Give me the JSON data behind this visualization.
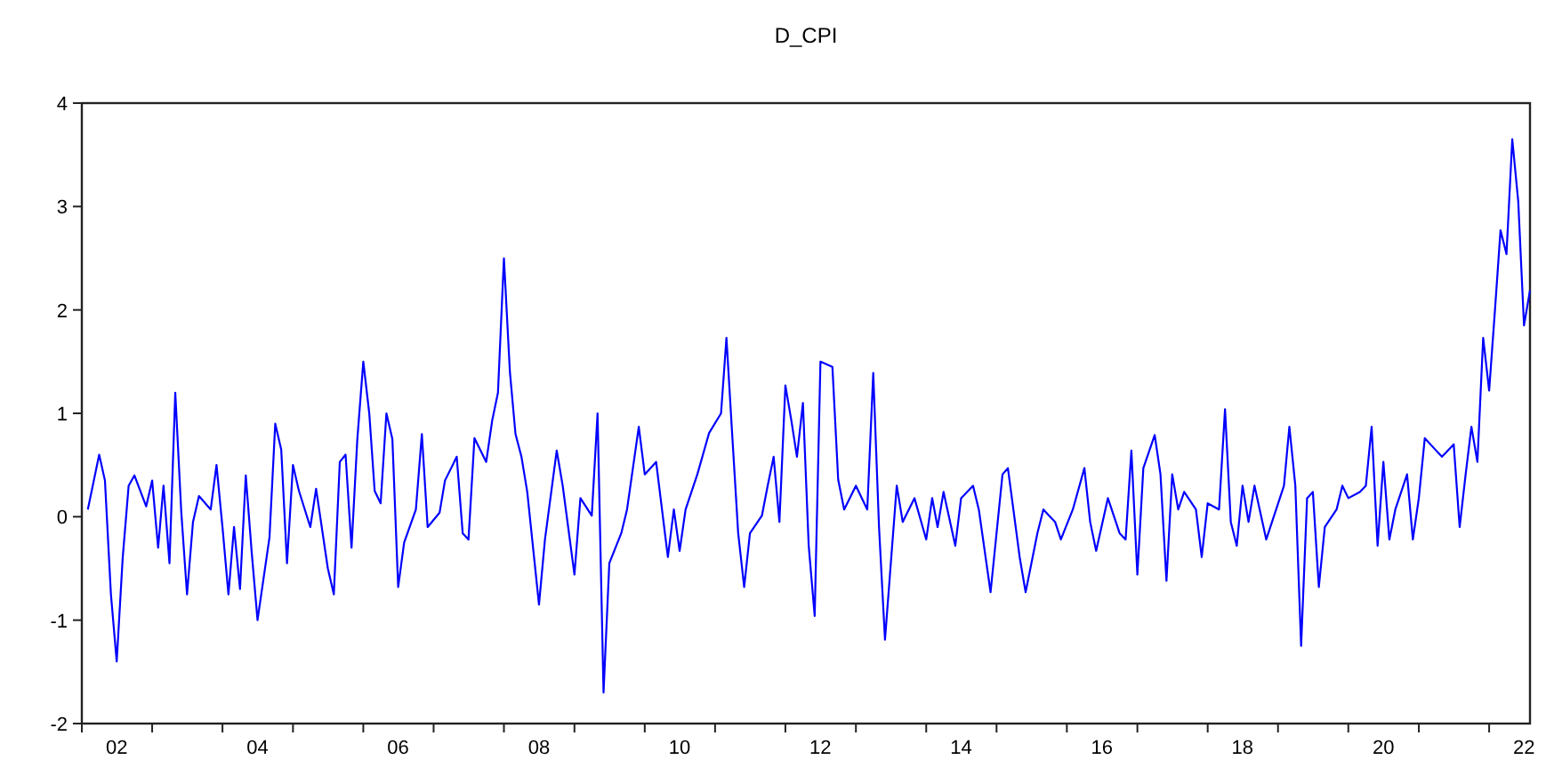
{
  "chart_data": {
    "type": "line",
    "title": "D_CPI",
    "xlim": [
      "2002-01",
      "2022-08"
    ],
    "ylim": [
      -2,
      4
    ],
    "yticks": [
      -2,
      -1,
      0,
      1,
      2,
      3,
      4
    ],
    "xticks": [
      {
        "value": "2002-01",
        "label": null
      },
      {
        "value": "2002-07",
        "label": "02"
      },
      {
        "value": "2003-01",
        "label": null
      },
      {
        "value": "2004-01",
        "label": null
      },
      {
        "value": "2004-07",
        "label": "04"
      },
      {
        "value": "2005-01",
        "label": null
      },
      {
        "value": "2006-01",
        "label": null
      },
      {
        "value": "2006-07",
        "label": "06"
      },
      {
        "value": "2007-01",
        "label": null
      },
      {
        "value": "2008-01",
        "label": null
      },
      {
        "value": "2008-07",
        "label": "08"
      },
      {
        "value": "2009-01",
        "label": null
      },
      {
        "value": "2010-01",
        "label": null
      },
      {
        "value": "2010-07",
        "label": "10"
      },
      {
        "value": "2011-01",
        "label": null
      },
      {
        "value": "2012-01",
        "label": null
      },
      {
        "value": "2012-07",
        "label": "12"
      },
      {
        "value": "2013-01",
        "label": null
      },
      {
        "value": "2014-01",
        "label": null
      },
      {
        "value": "2014-07",
        "label": "14"
      },
      {
        "value": "2015-01",
        "label": null
      },
      {
        "value": "2016-01",
        "label": null
      },
      {
        "value": "2016-07",
        "label": "16"
      },
      {
        "value": "2017-01",
        "label": null
      },
      {
        "value": "2018-01",
        "label": null
      },
      {
        "value": "2018-07",
        "label": "18"
      },
      {
        "value": "2019-01",
        "label": null
      },
      {
        "value": "2020-01",
        "label": null
      },
      {
        "value": "2020-07",
        "label": "20"
      },
      {
        "value": "2021-01",
        "label": null
      },
      {
        "value": "2022-01",
        "label": null
      },
      {
        "value": "2022-07",
        "label": "22"
      }
    ],
    "grid": false,
    "marker": "none",
    "line_style": "solid",
    "x": [
      "2002-02",
      "2002-04",
      "2002-05",
      "2002-06",
      "2002-07",
      "2002-08",
      "2002-09",
      "2002-10",
      "2002-12",
      "2003-01",
      "2003-02",
      "2003-03",
      "2003-04",
      "2003-05",
      "2003-06",
      "2003-07",
      "2003-08",
      "2003-09",
      "2003-11",
      "2003-12",
      "2004-01",
      "2004-02",
      "2004-03",
      "2004-04",
      "2004-05",
      "2004-06",
      "2004-07",
      "2004-09",
      "2004-10",
      "2004-11",
      "2004-12",
      "2005-01",
      "2005-02",
      "2005-04",
      "2005-05",
      "2005-07",
      "2005-08",
      "2005-09",
      "2005-10",
      "2005-11",
      "2005-12",
      "2006-01",
      "2006-02",
      "2006-03",
      "2006-04",
      "2006-05",
      "2006-06",
      "2006-07",
      "2006-08",
      "2006-10",
      "2006-11",
      "2006-12",
      "2007-02",
      "2007-03",
      "2007-05",
      "2007-06",
      "2007-07",
      "2007-08",
      "2007-10",
      "2007-11",
      "2007-12",
      "2008-01",
      "2008-02",
      "2008-03",
      "2008-04",
      "2008-05",
      "2008-07",
      "2008-08",
      "2008-10",
      "2008-11",
      "2009-01",
      "2009-02",
      "2009-04",
      "2009-05",
      "2009-06",
      "2009-07",
      "2009-09",
      "2009-10",
      "2009-12",
      "2010-01",
      "2010-03",
      "2010-05",
      "2010-06",
      "2010-07",
      "2010-08",
      "2010-10",
      "2010-12",
      "2011-02",
      "2011-03",
      "2011-04",
      "2011-05",
      "2011-06",
      "2011-07",
      "2011-09",
      "2011-10",
      "2011-11",
      "2011-12",
      "2012-01",
      "2012-02",
      "2012-03",
      "2012-04",
      "2012-05",
      "2012-06",
      "2012-07",
      "2012-09",
      "2012-10",
      "2012-11",
      "2013-01",
      "2013-03",
      "2013-04",
      "2013-05",
      "2013-06",
      "2013-08",
      "2013-09",
      "2013-11",
      "2014-01",
      "2014-02",
      "2014-03",
      "2014-04",
      "2014-06",
      "2014-07",
      "2014-09",
      "2014-10",
      "2014-12",
      "2015-02",
      "2015-03",
      "2015-05",
      "2015-06",
      "2015-08",
      "2015-09",
      "2015-11",
      "2015-12",
      "2016-02",
      "2016-04",
      "2016-05",
      "2016-06",
      "2016-08",
      "2016-10",
      "2016-11",
      "2016-12",
      "2017-01",
      "2017-02",
      "2017-04",
      "2017-05",
      "2017-06",
      "2017-07",
      "2017-08",
      "2017-09",
      "2017-11",
      "2017-12",
      "2018-01",
      "2018-03",
      "2018-04",
      "2018-05",
      "2018-06",
      "2018-07",
      "2018-08",
      "2018-09",
      "2018-11",
      "2018-12",
      "2019-02",
      "2019-03",
      "2019-04",
      "2019-05",
      "2019-06",
      "2019-07",
      "2019-08",
      "2019-09",
      "2019-11",
      "2019-12",
      "2020-01",
      "2020-03",
      "2020-04",
      "2020-05",
      "2020-06",
      "2020-07",
      "2020-08",
      "2020-09",
      "2020-11",
      "2020-12",
      "2021-01",
      "2021-02",
      "2021-04",
      "2021-05",
      "2021-07",
      "2021-08",
      "2021-09",
      "2021-10",
      "2021-11",
      "2021-12",
      "2022-01",
      "2022-02",
      "2022-03",
      "2022-04",
      "2022-05",
      "2022-06",
      "2022-07",
      "2022-08"
    ],
    "series": [
      {
        "color": "#0000ff",
        "values": [
          0.07,
          0.6,
          0.35,
          -0.75,
          -1.4,
          -0.4,
          0.3,
          0.4,
          0.1,
          0.35,
          -0.3,
          0.3,
          -0.45,
          1.2,
          0.05,
          -0.75,
          -0.05,
          0.2,
          0.07,
          0.5,
          -0.1,
          -0.75,
          -0.1,
          -0.7,
          0.4,
          -0.35,
          -1.0,
          -0.2,
          0.9,
          0.65,
          -0.45,
          0.5,
          0.25,
          -0.1,
          0.27,
          -0.5,
          -0.75,
          0.53,
          0.6,
          -0.3,
          0.75,
          1.5,
          1.0,
          0.25,
          0.13,
          1.0,
          0.75,
          -0.68,
          -0.25,
          0.07,
          0.8,
          -0.1,
          0.04,
          0.35,
          0.58,
          -0.16,
          -0.22,
          0.76,
          0.53,
          0.93,
          1.2,
          2.5,
          1.4,
          0.8,
          0.58,
          0.24,
          -0.85,
          -0.22,
          0.64,
          0.3,
          -0.56,
          0.18,
          0.01,
          1.0,
          -1.7,
          -0.45,
          -0.16,
          0.07,
          0.87,
          0.41,
          0.53,
          -0.39,
          0.07,
          -0.33,
          0.07,
          0.41,
          0.81,
          1.0,
          1.73,
          0.76,
          -0.16,
          -0.68,
          -0.16,
          0.01,
          0.3,
          0.58,
          -0.05,
          1.27,
          0.93,
          0.58,
          1.1,
          -0.28,
          -0.96,
          1.5,
          1.45,
          0.36,
          0.07,
          0.3,
          0.07,
          1.39,
          -0.1,
          -1.19,
          0.3,
          -0.05,
          0.18,
          -0.22,
          0.18,
          -0.1,
          0.24,
          -0.28,
          0.18,
          0.3,
          0.07,
          -0.73,
          0.41,
          0.47,
          -0.39,
          -0.73,
          -0.16,
          0.07,
          -0.05,
          -0.22,
          0.07,
          0.47,
          -0.05,
          -0.33,
          0.18,
          -0.16,
          -0.22,
          0.64,
          -0.56,
          0.47,
          0.79,
          0.41,
          -0.62,
          0.41,
          0.07,
          0.24,
          0.07,
          -0.39,
          0.13,
          0.07,
          1.04,
          -0.05,
          -0.28,
          0.3,
          -0.05,
          0.3,
          -0.22,
          -0.05,
          0.3,
          0.87,
          0.3,
          -1.25,
          0.18,
          0.24,
          -0.68,
          -0.1,
          0.07,
          0.3,
          0.18,
          0.24,
          0.3,
          0.87,
          -0.28,
          0.53,
          -0.22,
          0.07,
          0.41,
          -0.22,
          0.18,
          0.76,
          0.64,
          0.58,
          0.7,
          -0.1,
          0.41,
          0.87,
          0.53,
          1.73,
          1.22,
          2.02,
          2.77,
          2.54,
          3.65,
          3.05,
          1.85,
          2.19
        ]
      }
    ]
  }
}
